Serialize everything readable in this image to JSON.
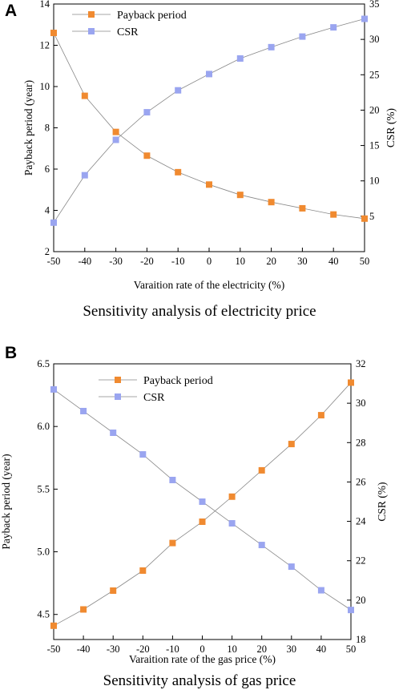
{
  "chart_data": [
    {
      "panel_label": "A",
      "caption": "Sensitivity analysis of electricity price",
      "type": "line",
      "x": [
        -50,
        -40,
        -30,
        -20,
        -10,
        0,
        10,
        20,
        30,
        40,
        50
      ],
      "xlabel": "Varaition rate of the electricity (%)",
      "ylabel": "Payback period (year)",
      "y2label": "CSR (%)",
      "xlim": [
        -50,
        50
      ],
      "ylim": [
        2,
        14
      ],
      "y2lim": [
        0,
        35
      ],
      "xticks": [
        "-50",
        "-40",
        "-30",
        "-20",
        "-10",
        "0",
        "10",
        "20",
        "30",
        "40",
        "50"
      ],
      "yticks": [
        "2",
        "4",
        "6",
        "8",
        "10",
        "12",
        "14"
      ],
      "y2ticks": [
        "5",
        "10",
        "15",
        "20",
        "25",
        "30",
        "35"
      ],
      "grid": false,
      "legend_position": "top-left",
      "series": [
        {
          "name": "Payback period",
          "axis": "left",
          "color": "#f08a30",
          "marker": "square",
          "values": [
            12.6,
            9.55,
            7.8,
            6.65,
            5.85,
            5.25,
            4.75,
            4.4,
            4.1,
            3.8,
            3.6
          ]
        },
        {
          "name": "CSR",
          "axis": "right",
          "color": "#9aa5f0",
          "marker": "square",
          "values": [
            4.1,
            10.8,
            15.8,
            19.7,
            22.8,
            25.1,
            27.3,
            28.9,
            30.4,
            31.7,
            32.9
          ]
        }
      ]
    },
    {
      "panel_label": "B",
      "caption": "Sensitivity analysis of gas price",
      "type": "line",
      "x": [
        -50,
        -40,
        -30,
        -20,
        -10,
        0,
        10,
        20,
        30,
        40,
        50
      ],
      "xlabel": "Varaition rate of the gas price (%)",
      "ylabel": "Payback period (year)",
      "y2label": "CSR (%)",
      "xlim": [
        -50,
        50
      ],
      "ylim": [
        4.3,
        6.5
      ],
      "y2lim": [
        18,
        32
      ],
      "xticks": [
        "-50",
        "-40",
        "-30",
        "-20",
        "-10",
        "0",
        "10",
        "20",
        "30",
        "40",
        "50"
      ],
      "yticks": [
        "4.5",
        "5.0",
        "5.5",
        "6.0",
        "6.5"
      ],
      "y2ticks": [
        "18",
        "20",
        "22",
        "24",
        "26",
        "28",
        "30",
        "32"
      ],
      "grid": false,
      "legend_position": "top-left",
      "series": [
        {
          "name": "Payback period",
          "axis": "left",
          "color": "#f08a30",
          "marker": "square",
          "values": [
            4.41,
            4.54,
            4.69,
            4.85,
            5.07,
            5.24,
            5.44,
            5.65,
            5.86,
            6.09,
            6.35
          ]
        },
        {
          "name": "CSR",
          "axis": "right",
          "color": "#9aa5f0",
          "marker": "square",
          "values": [
            30.7,
            29.6,
            28.5,
            27.4,
            26.1,
            25.0,
            23.9,
            22.8,
            21.7,
            20.5,
            19.5
          ]
        }
      ]
    }
  ]
}
